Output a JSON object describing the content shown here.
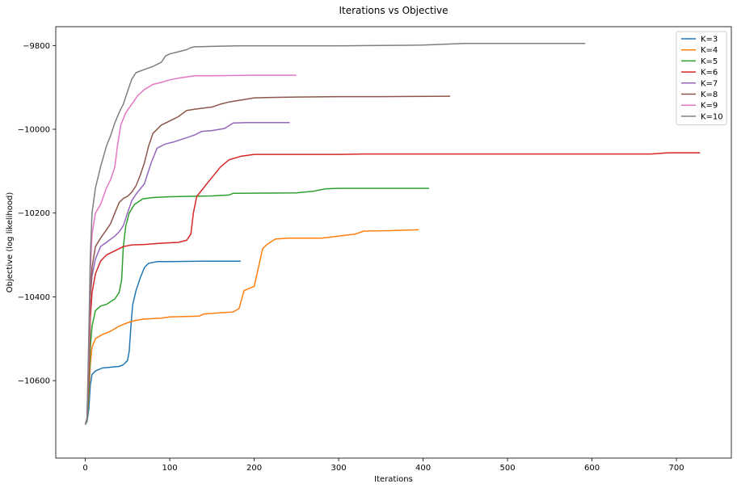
{
  "chart_data": {
    "type": "line",
    "title": "Iterations vs Objective",
    "xlabel": "Iterations",
    "ylabel": "Objective (log likelihood)",
    "xlim": [
      -35,
      765
    ],
    "ylim": [
      -10785,
      -9755
    ],
    "xticks": [
      0,
      100,
      200,
      300,
      400,
      500,
      600,
      700
    ],
    "yticks": [
      -10600,
      -10400,
      -10200,
      -10000,
      -9800
    ],
    "grid": false,
    "legend": "top-right",
    "series": [
      {
        "name": "K=3",
        "color": "#1f77b4",
        "points": [
          [
            0,
            -10705
          ],
          [
            2,
            -10698
          ],
          [
            4,
            -10670
          ],
          [
            6,
            -10610
          ],
          [
            8,
            -10585
          ],
          [
            12,
            -10577
          ],
          [
            20,
            -10570
          ],
          [
            30,
            -10568
          ],
          [
            40,
            -10566
          ],
          [
            45,
            -10562
          ],
          [
            50,
            -10552
          ],
          [
            52,
            -10530
          ],
          [
            54,
            -10470
          ],
          [
            56,
            -10420
          ],
          [
            60,
            -10385
          ],
          [
            65,
            -10355
          ],
          [
            70,
            -10330
          ],
          [
            75,
            -10320
          ],
          [
            85,
            -10316
          ],
          [
            100,
            -10316
          ],
          [
            140,
            -10315
          ],
          [
            184,
            -10315
          ]
        ]
      },
      {
        "name": "K=4",
        "color": "#ff7f0e",
        "points": [
          [
            0,
            -10705
          ],
          [
            2,
            -10695
          ],
          [
            4,
            -10640
          ],
          [
            6,
            -10560
          ],
          [
            8,
            -10520
          ],
          [
            12,
            -10500
          ],
          [
            20,
            -10490
          ],
          [
            30,
            -10482
          ],
          [
            40,
            -10470
          ],
          [
            50,
            -10462
          ],
          [
            60,
            -10456
          ],
          [
            70,
            -10453
          ],
          [
            90,
            -10451
          ],
          [
            100,
            -10448
          ],
          [
            135,
            -10446
          ],
          [
            140,
            -10441
          ],
          [
            160,
            -10438
          ],
          [
            175,
            -10436
          ],
          [
            182,
            -10428
          ],
          [
            188,
            -10385
          ],
          [
            200,
            -10375
          ],
          [
            205,
            -10330
          ],
          [
            210,
            -10285
          ],
          [
            215,
            -10275
          ],
          [
            225,
            -10262
          ],
          [
            240,
            -10260
          ],
          [
            280,
            -10260
          ],
          [
            300,
            -10255
          ],
          [
            320,
            -10250
          ],
          [
            330,
            -10243
          ],
          [
            360,
            -10242
          ],
          [
            395,
            -10240
          ]
        ]
      },
      {
        "name": "K=5",
        "color": "#2ca02c",
        "points": [
          [
            0,
            -10705
          ],
          [
            2,
            -10695
          ],
          [
            4,
            -10630
          ],
          [
            6,
            -10520
          ],
          [
            8,
            -10470
          ],
          [
            12,
            -10433
          ],
          [
            18,
            -10422
          ],
          [
            25,
            -10418
          ],
          [
            35,
            -10405
          ],
          [
            40,
            -10390
          ],
          [
            43,
            -10360
          ],
          [
            45,
            -10280
          ],
          [
            48,
            -10230
          ],
          [
            52,
            -10200
          ],
          [
            58,
            -10180
          ],
          [
            68,
            -10166
          ],
          [
            80,
            -10163
          ],
          [
            100,
            -10161
          ],
          [
            150,
            -10159
          ],
          [
            170,
            -10157
          ],
          [
            175,
            -10153
          ],
          [
            250,
            -10152
          ],
          [
            270,
            -10148
          ],
          [
            285,
            -10142
          ],
          [
            300,
            -10141
          ],
          [
            407,
            -10141
          ]
        ]
      },
      {
        "name": "K=6",
        "color": "#d62728",
        "points": [
          [
            0,
            -10705
          ],
          [
            2,
            -10690
          ],
          [
            4,
            -10600
          ],
          [
            6,
            -10450
          ],
          [
            8,
            -10390
          ],
          [
            12,
            -10345
          ],
          [
            18,
            -10315
          ],
          [
            25,
            -10300
          ],
          [
            35,
            -10290
          ],
          [
            45,
            -10280
          ],
          [
            55,
            -10276
          ],
          [
            70,
            -10275
          ],
          [
            90,
            -10272
          ],
          [
            110,
            -10270
          ],
          [
            120,
            -10265
          ],
          [
            125,
            -10250
          ],
          [
            128,
            -10200
          ],
          [
            132,
            -10160
          ],
          [
            140,
            -10140
          ],
          [
            148,
            -10120
          ],
          [
            160,
            -10090
          ],
          [
            170,
            -10073
          ],
          [
            185,
            -10064
          ],
          [
            200,
            -10060
          ],
          [
            300,
            -10060
          ],
          [
            330,
            -10059
          ],
          [
            670,
            -10059
          ],
          [
            690,
            -10056
          ],
          [
            728,
            -10056
          ]
        ]
      },
      {
        "name": "K=7",
        "color": "#9467bd",
        "points": [
          [
            0,
            -10705
          ],
          [
            2,
            -10690
          ],
          [
            4,
            -10560
          ],
          [
            6,
            -10400
          ],
          [
            8,
            -10350
          ],
          [
            12,
            -10310
          ],
          [
            18,
            -10280
          ],
          [
            25,
            -10270
          ],
          [
            35,
            -10255
          ],
          [
            40,
            -10245
          ],
          [
            45,
            -10230
          ],
          [
            50,
            -10200
          ],
          [
            55,
            -10170
          ],
          [
            60,
            -10155
          ],
          [
            70,
            -10130
          ],
          [
            78,
            -10080
          ],
          [
            85,
            -10045
          ],
          [
            95,
            -10035
          ],
          [
            105,
            -10030
          ],
          [
            120,
            -10020
          ],
          [
            130,
            -10013
          ],
          [
            138,
            -10005
          ],
          [
            150,
            -10003
          ],
          [
            165,
            -9998
          ],
          [
            175,
            -9985
          ],
          [
            190,
            -9984
          ],
          [
            242,
            -9984
          ]
        ]
      },
      {
        "name": "K=8",
        "color": "#8c564b",
        "points": [
          [
            0,
            -10705
          ],
          [
            2,
            -10690
          ],
          [
            4,
            -10560
          ],
          [
            6,
            -10400
          ],
          [
            8,
            -10330
          ],
          [
            12,
            -10280
          ],
          [
            18,
            -10260
          ],
          [
            25,
            -10240
          ],
          [
            30,
            -10225
          ],
          [
            35,
            -10200
          ],
          [
            40,
            -10175
          ],
          [
            45,
            -10165
          ],
          [
            50,
            -10160
          ],
          [
            55,
            -10150
          ],
          [
            60,
            -10135
          ],
          [
            65,
            -10110
          ],
          [
            70,
            -10080
          ],
          [
            75,
            -10040
          ],
          [
            80,
            -10010
          ],
          [
            90,
            -9990
          ],
          [
            100,
            -9980
          ],
          [
            110,
            -9970
          ],
          [
            120,
            -9955
          ],
          [
            130,
            -9952
          ],
          [
            150,
            -9947
          ],
          [
            160,
            -9940
          ],
          [
            170,
            -9935
          ],
          [
            185,
            -9930
          ],
          [
            200,
            -9925
          ],
          [
            220,
            -9924
          ],
          [
            250,
            -9923
          ],
          [
            300,
            -9922
          ],
          [
            350,
            -9922
          ],
          [
            432,
            -9921
          ]
        ]
      },
      {
        "name": "K=9",
        "color": "#e377c2",
        "points": [
          [
            0,
            -10705
          ],
          [
            2,
            -10690
          ],
          [
            4,
            -10550
          ],
          [
            6,
            -10340
          ],
          [
            8,
            -10250
          ],
          [
            12,
            -10200
          ],
          [
            18,
            -10180
          ],
          [
            25,
            -10140
          ],
          [
            30,
            -10120
          ],
          [
            35,
            -10090
          ],
          [
            38,
            -10040
          ],
          [
            42,
            -9990
          ],
          [
            48,
            -9960
          ],
          [
            55,
            -9940
          ],
          [
            62,
            -9920
          ],
          [
            70,
            -9905
          ],
          [
            80,
            -9893
          ],
          [
            90,
            -9888
          ],
          [
            100,
            -9882
          ],
          [
            110,
            -9878
          ],
          [
            130,
            -9872
          ],
          [
            150,
            -9872
          ],
          [
            200,
            -9871
          ],
          [
            250,
            -9871
          ]
        ]
      },
      {
        "name": "K=10",
        "color": "#7f7f7f",
        "points": [
          [
            0,
            -10705
          ],
          [
            2,
            -10690
          ],
          [
            4,
            -10500
          ],
          [
            6,
            -10300
          ],
          [
            8,
            -10200
          ],
          [
            12,
            -10140
          ],
          [
            18,
            -10090
          ],
          [
            25,
            -10040
          ],
          [
            30,
            -10015
          ],
          [
            35,
            -9985
          ],
          [
            40,
            -9960
          ],
          [
            45,
            -9940
          ],
          [
            50,
            -9910
          ],
          [
            55,
            -9880
          ],
          [
            60,
            -9865
          ],
          [
            70,
            -9857
          ],
          [
            80,
            -9850
          ],
          [
            90,
            -9840
          ],
          [
            95,
            -9825
          ],
          [
            100,
            -9820
          ],
          [
            110,
            -9815
          ],
          [
            120,
            -9810
          ],
          [
            125,
            -9805
          ],
          [
            130,
            -9803
          ],
          [
            150,
            -9802
          ],
          [
            180,
            -9801
          ],
          [
            300,
            -9801
          ],
          [
            350,
            -9800
          ],
          [
            400,
            -9799
          ],
          [
            450,
            -9795
          ],
          [
            500,
            -9795
          ],
          [
            592,
            -9795
          ]
        ]
      }
    ]
  }
}
